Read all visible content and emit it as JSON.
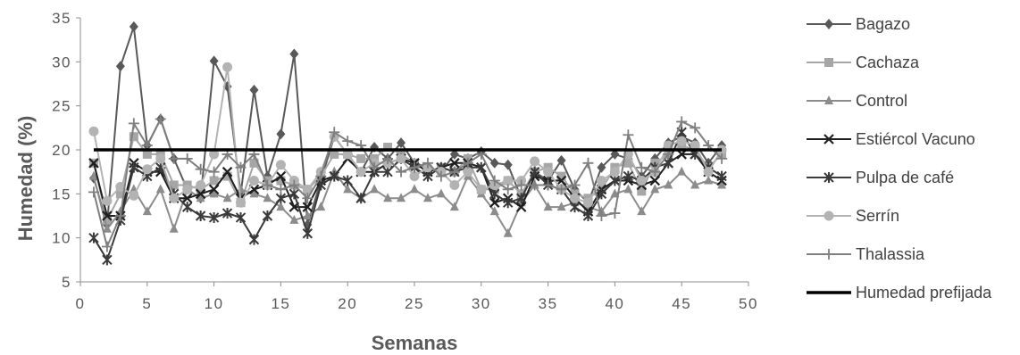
{
  "chart_data": {
    "type": "line",
    "xlabel": "Semanas",
    "ylabel": "Humedad (%)",
    "xlim": [
      0,
      50
    ],
    "ylim": [
      5,
      35
    ],
    "xticks": [
      0,
      5,
      10,
      15,
      20,
      25,
      30,
      35,
      40,
      45,
      50
    ],
    "yticks": [
      5,
      10,
      15,
      20,
      25,
      30,
      35
    ],
    "legend_position": "right",
    "grid": false,
    "x": [
      1,
      2,
      3,
      4,
      5,
      6,
      7,
      8,
      9,
      10,
      11,
      12,
      13,
      14,
      15,
      16,
      17,
      18,
      19,
      20,
      21,
      22,
      23,
      24,
      25,
      26,
      27,
      28,
      29,
      30,
      31,
      32,
      33,
      34,
      35,
      36,
      37,
      38,
      39,
      40,
      41,
      42,
      43,
      44,
      45,
      46,
      47,
      48
    ],
    "series": [
      {
        "name": "Bagazo",
        "color": "#595959",
        "marker": "diamond",
        "values": [
          16.8,
          11.5,
          29.5,
          34.0,
          20.5,
          23.5,
          19.0,
          15.5,
          14.5,
          30.1,
          27.2,
          15.0,
          26.8,
          17.0,
          21.8,
          30.9,
          11.5,
          16.5,
          21.5,
          19.5,
          17.5,
          20.3,
          19.0,
          20.8,
          18.5,
          18.0,
          17.5,
          19.5,
          19.0,
          19.8,
          18.5,
          18.3,
          14.5,
          17.5,
          16.5,
          18.8,
          15.5,
          14.0,
          18.0,
          19.5,
          19.0,
          17.0,
          19.0,
          20.8,
          21.5,
          20.8,
          18.5,
          20.5
        ]
      },
      {
        "name": "Cachaza",
        "color": "#a6a6a6",
        "marker": "square",
        "values": [
          18.5,
          12.0,
          15.0,
          21.5,
          19.5,
          19.5,
          16.0,
          16.0,
          15.5,
          16.5,
          17.0,
          14.0,
          18.5,
          16.5,
          16.5,
          16.0,
          15.5,
          17.0,
          19.5,
          19.5,
          19.0,
          19.0,
          20.3,
          19.5,
          18.5,
          17.5,
          18.0,
          17.5,
          19.0,
          15.5,
          15.5,
          16.5,
          15.0,
          17.5,
          18.0,
          17.0,
          15.0,
          14.5,
          15.5,
          18.0,
          18.5,
          15.3,
          18.5,
          19.5,
          20.5,
          20.0,
          18.0,
          19.5
        ]
      },
      {
        "name": "Control",
        "color": "#8c8c8c",
        "marker": "triangle",
        "values": [
          17.0,
          11.0,
          13.0,
          15.5,
          13.0,
          15.5,
          11.0,
          15.5,
          14.5,
          15.0,
          14.5,
          15.5,
          15.0,
          14.5,
          13.5,
          12.0,
          12.5,
          13.5,
          17.5,
          15.5,
          14.5,
          15.5,
          14.5,
          14.5,
          15.5,
          14.5,
          15.0,
          13.5,
          17.0,
          15.0,
          13.0,
          10.5,
          14.0,
          16.0,
          13.5,
          13.5,
          14.0,
          13.5,
          13.0,
          15.0,
          15.5,
          13.0,
          15.5,
          16.0,
          17.5,
          16.0,
          16.5,
          16.0
        ]
      },
      {
        "name": "Estiércol Vacuno",
        "color": "#1f1f1f",
        "marker": "x",
        "values": [
          18.5,
          12.5,
          12.5,
          18.5,
          17.5,
          17.5,
          14.5,
          14.5,
          15.0,
          15.5,
          17.5,
          14.5,
          15.5,
          16.0,
          17.0,
          13.5,
          13.5,
          16.5,
          17.0,
          19.0,
          17.5,
          17.5,
          18.5,
          19.0,
          18.5,
          17.5,
          18.0,
          18.5,
          18.5,
          18.0,
          14.0,
          14.5,
          13.5,
          17.0,
          16.5,
          16.5,
          14.5,
          13.0,
          15.5,
          16.5,
          16.5,
          16.0,
          16.5,
          18.5,
          19.5,
          19.5,
          17.5,
          16.5
        ]
      },
      {
        "name": "Pulpa de café",
        "color": "#3a3a3a",
        "marker": "asterisk",
        "values": [
          10.0,
          7.5,
          12.0,
          18.0,
          17.0,
          18.0,
          15.0,
          13.5,
          12.5,
          12.3,
          12.8,
          12.3,
          9.8,
          12.5,
          14.5,
          15.0,
          10.5,
          16.0,
          17.0,
          16.5,
          14.5,
          17.5,
          17.5,
          19.0,
          18.0,
          17.0,
          18.0,
          17.5,
          18.0,
          18.0,
          15.0,
          14.0,
          14.5,
          17.5,
          16.0,
          15.5,
          13.5,
          12.5,
          15.0,
          16.5,
          17.0,
          16.5,
          18.0,
          18.5,
          22.0,
          19.5,
          18.0,
          17.0
        ]
      },
      {
        "name": "Serrín",
        "color": "#b3b3b3",
        "marker": "circle",
        "values": [
          22.1,
          14.2,
          15.8,
          14.8,
          17.8,
          19.0,
          14.5,
          15.5,
          16.0,
          19.5,
          29.4,
          14.0,
          16.5,
          16.0,
          18.3,
          16.5,
          15.5,
          17.5,
          21.5,
          19.5,
          17.5,
          18.5,
          18.5,
          19.0,
          17.0,
          18.0,
          17.5,
          16.0,
          17.5,
          15.5,
          16.0,
          16.5,
          16.5,
          18.7,
          17.5,
          15.5,
          14.5,
          14.0,
          16.5,
          17.5,
          19.5,
          16.5,
          17.5,
          20.5,
          21.0,
          20.5,
          17.5,
          20.0
        ]
      },
      {
        "name": "Thalassia",
        "color": "#7f7f7f",
        "marker": "plus",
        "values": [
          15.2,
          9.0,
          12.5,
          23.0,
          20.5,
          23.5,
          19.0,
          19.0,
          17.8,
          17.5,
          19.5,
          18.0,
          19.5,
          16.0,
          15.5,
          16.0,
          14.5,
          17.0,
          22.0,
          21.0,
          20.5,
          18.0,
          19.0,
          17.5,
          18.0,
          18.5,
          17.0,
          17.5,
          18.5,
          19.5,
          16.5,
          15.5,
          16.0,
          16.0,
          16.0,
          15.5,
          16.0,
          18.5,
          12.5,
          12.8,
          21.7,
          18.0,
          17.5,
          19.5,
          23.2,
          22.5,
          20.5,
          19.0
        ]
      },
      {
        "name": "Humedad prefijada",
        "color": "#000000",
        "marker": "none",
        "values": [
          20,
          20,
          20,
          20,
          20,
          20,
          20,
          20,
          20,
          20,
          20,
          20,
          20,
          20,
          20,
          20,
          20,
          20,
          20,
          20,
          20,
          20,
          20,
          20,
          20,
          20,
          20,
          20,
          20,
          20,
          20,
          20,
          20,
          20,
          20,
          20,
          20,
          20,
          20,
          20,
          20,
          20,
          20,
          20,
          20,
          20,
          20,
          20
        ]
      }
    ]
  }
}
